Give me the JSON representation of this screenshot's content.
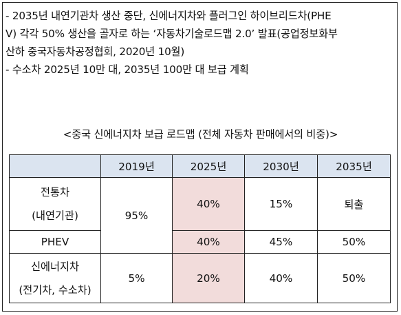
{
  "bullets": [
    "- 2035년 내연기관차 생산 중단, 신에너지차와 플러그인 하이브리드차(PHEV) 각각 50% 생산을 골자로 하는 ‘자동차기술로드맵 2.0’ 발표(공업정보화부 산하 중국자동차공정협회, 2020년 10월)",
    "- 수소차 2025년 10만 대, 2035년 100만 대 보급 계획"
  ],
  "bullet1_lines": [
    "- 2035년 내연기관차 생산 중단, 신에너지차와 플러그인 하이브리드차(PHE",
    "V) 각각 50% 생산을 골자로 하는 ‘자동차기술로드맵 2.0’ 발표(공업정보화부",
    "산하 중국자동차공정협회, 2020년 10월)"
  ],
  "table_caption": "<중국 신에너지차 보급 로드맵 (전체 자동차 판매에서의 비중)>",
  "table": {
    "headers": [
      "",
      "2019년",
      "2025년",
      "2030년",
      "2035년"
    ],
    "rows": {
      "ice": {
        "label_line1": "전통차",
        "label_line2": "(내연기관)",
        "v2019": "95%",
        "v2025": "40%",
        "v2030": "15%",
        "v2035": "퇴출"
      },
      "phev": {
        "label": "PHEV",
        "v2025": "40%",
        "v2030": "45%",
        "v2035": "50%"
      },
      "nev": {
        "label_line1": "신에너지차",
        "label_line2": "(전기차, 수소차)",
        "v2019": "5%",
        "v2025": "20%",
        "v2030": "40%",
        "v2035": "50%"
      }
    },
    "highlight_color": "#f2dcdb",
    "header_color": "#dbe4f0"
  }
}
